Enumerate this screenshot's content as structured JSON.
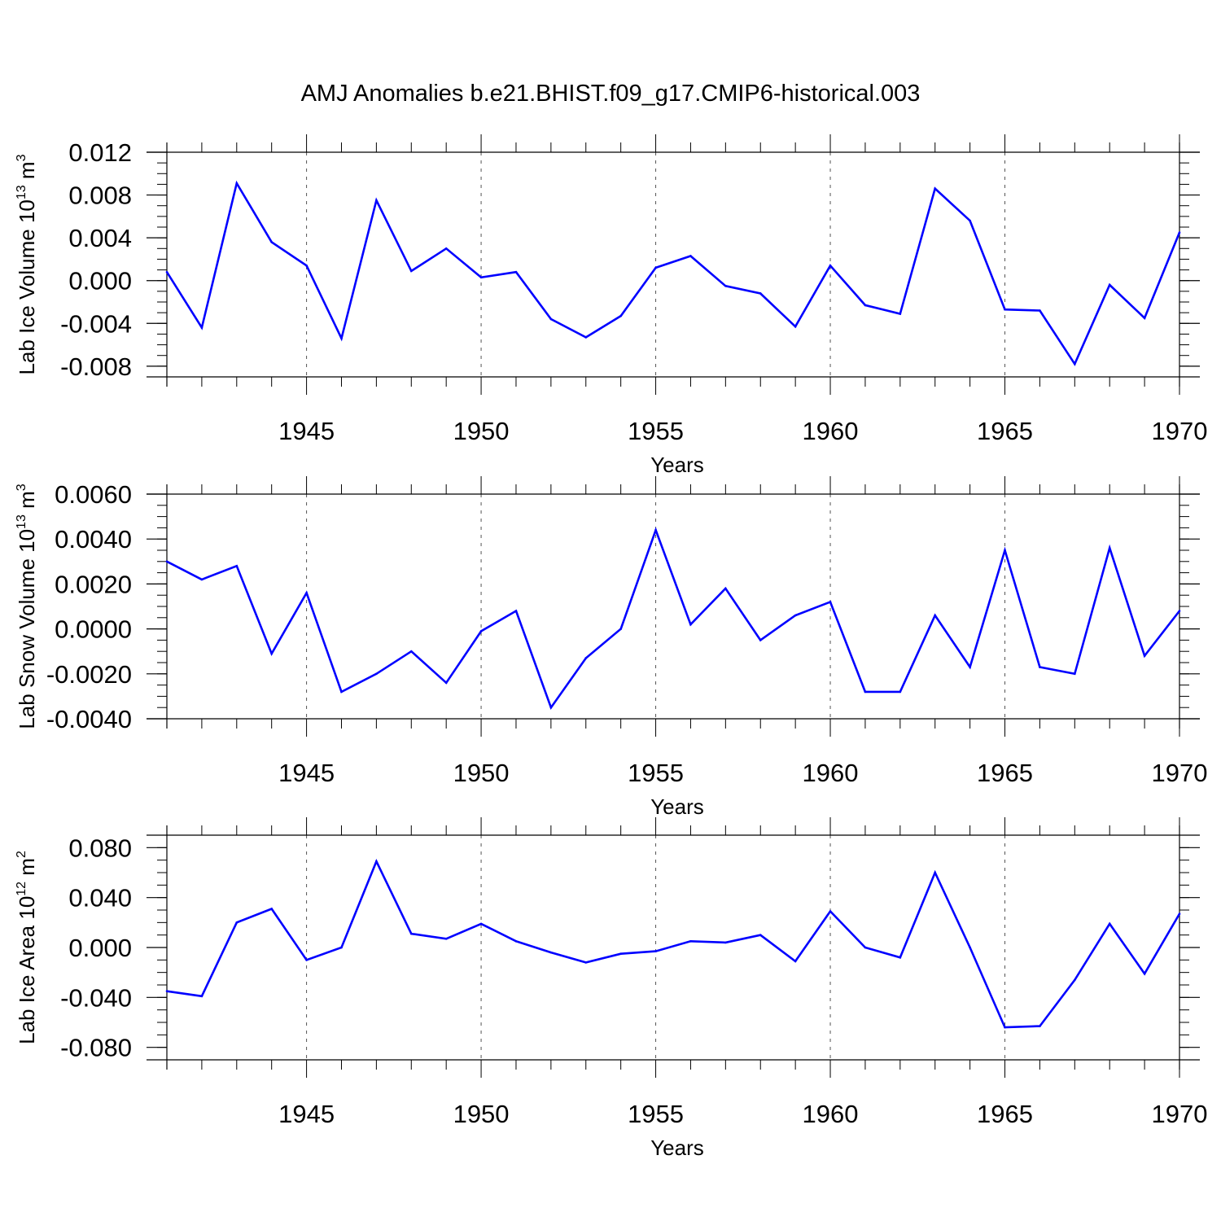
{
  "figure_title": "AMJ Anomalies b.e21.BHIST.f09_g17.CMIP6-historical.003",
  "colors": {
    "line": "#0000ff",
    "axis": "#000000",
    "grid": "#555555"
  },
  "chart_data": [
    {
      "type": "line",
      "ylabel_main": "Lab Ice Volume 10",
      "ylabel_exp": "13",
      "ylabel_unit": " m",
      "ylabel_unit_exp": "3",
      "xlabel": "Years",
      "xlim": [
        1941,
        1970
      ],
      "ylim": [
        -0.009,
        0.012
      ],
      "yticks": [
        -0.008,
        -0.004,
        0.0,
        0.004,
        0.008,
        0.012
      ],
      "ytick_labels": [
        "-0.008",
        "-0.004",
        "0.000",
        "0.004",
        "0.008",
        "0.012"
      ],
      "yminor_step": 0.001,
      "xticks": [
        1945,
        1950,
        1955,
        1960,
        1965,
        1970
      ],
      "xtick_labels": [
        "1945",
        "1950",
        "1955",
        "1960",
        "1965",
        "1970"
      ],
      "x": [
        1941,
        1942,
        1943,
        1944,
        1945,
        1946,
        1947,
        1948,
        1949,
        1950,
        1951,
        1952,
        1953,
        1954,
        1955,
        1956,
        1957,
        1958,
        1959,
        1960,
        1961,
        1962,
        1963,
        1964,
        1965,
        1966,
        1967,
        1968,
        1969,
        1970
      ],
      "values": [
        0.0008,
        -0.0044,
        0.0091,
        0.0036,
        0.0014,
        -0.0054,
        0.0075,
        0.0009,
        0.003,
        0.0003,
        0.0008,
        -0.0036,
        -0.0053,
        -0.0033,
        0.0012,
        0.0023,
        -0.0005,
        -0.0012,
        -0.0043,
        0.0014,
        -0.0023,
        -0.0031,
        0.0086,
        0.0056,
        -0.0027,
        -0.0028,
        -0.0078,
        -0.0004,
        -0.0035,
        0.0045
      ]
    },
    {
      "type": "line",
      "ylabel_main": "Lab Snow Volume 10",
      "ylabel_exp": "13",
      "ylabel_unit": " m",
      "ylabel_unit_exp": "3",
      "xlabel": "Years",
      "xlim": [
        1941,
        1970
      ],
      "ylim": [
        -0.004,
        0.006
      ],
      "yticks": [
        -0.004,
        -0.002,
        0.0,
        0.002,
        0.004,
        0.006
      ],
      "ytick_labels": [
        "-0.0040",
        "-0.0020",
        "0.0000",
        "0.0020",
        "0.0040",
        "0.0060"
      ],
      "yminor_step": 0.0005,
      "xticks": [
        1945,
        1950,
        1955,
        1960,
        1965,
        1970
      ],
      "xtick_labels": [
        "1945",
        "1950",
        "1955",
        "1960",
        "1965",
        "1970"
      ],
      "x": [
        1941,
        1942,
        1943,
        1944,
        1945,
        1946,
        1947,
        1948,
        1949,
        1950,
        1951,
        1952,
        1953,
        1954,
        1955,
        1956,
        1957,
        1958,
        1959,
        1960,
        1961,
        1962,
        1963,
        1964,
        1965,
        1966,
        1967,
        1968,
        1969,
        1970
      ],
      "values": [
        0.003,
        0.0022,
        0.0028,
        -0.0011,
        0.0016,
        -0.0028,
        -0.002,
        -0.001,
        -0.0024,
        -0.0001,
        0.0008,
        -0.0035,
        -0.0013,
        0.0,
        0.0044,
        0.0002,
        0.0018,
        -0.0005,
        0.0006,
        0.0012,
        -0.0028,
        -0.0028,
        0.0006,
        -0.0017,
        0.0035,
        -0.0017,
        -0.002,
        0.0036,
        -0.0012,
        0.0008
      ]
    },
    {
      "type": "line",
      "ylabel_main": "Lab Ice Area 10",
      "ylabel_exp": "12",
      "ylabel_unit": " m",
      "ylabel_unit_exp": "2",
      "xlabel": "Years",
      "xlim": [
        1941,
        1970
      ],
      "ylim": [
        -0.09,
        0.09
      ],
      "yticks": [
        -0.08,
        -0.04,
        0.0,
        0.04,
        0.08
      ],
      "ytick_labels": [
        "-0.080",
        "-0.040",
        "0.000",
        "0.040",
        "0.080"
      ],
      "yminor_step": 0.01,
      "xticks": [
        1945,
        1950,
        1955,
        1960,
        1965,
        1970
      ],
      "xtick_labels": [
        "1945",
        "1950",
        "1955",
        "1960",
        "1965",
        "1970"
      ],
      "x": [
        1941,
        1942,
        1943,
        1944,
        1945,
        1946,
        1947,
        1948,
        1949,
        1950,
        1951,
        1952,
        1953,
        1954,
        1955,
        1956,
        1957,
        1958,
        1959,
        1960,
        1961,
        1962,
        1963,
        1964,
        1965,
        1966,
        1967,
        1968,
        1969,
        1970
      ],
      "values": [
        -0.035,
        -0.039,
        0.02,
        0.031,
        -0.01,
        0.0,
        0.069,
        0.011,
        0.007,
        0.019,
        0.005,
        -0.004,
        -0.012,
        -0.005,
        -0.003,
        0.005,
        0.004,
        0.01,
        -0.011,
        0.029,
        0.0,
        -0.008,
        0.06,
        0.0,
        -0.064,
        -0.063,
        -0.026,
        0.019,
        -0.021,
        0.027
      ]
    }
  ]
}
